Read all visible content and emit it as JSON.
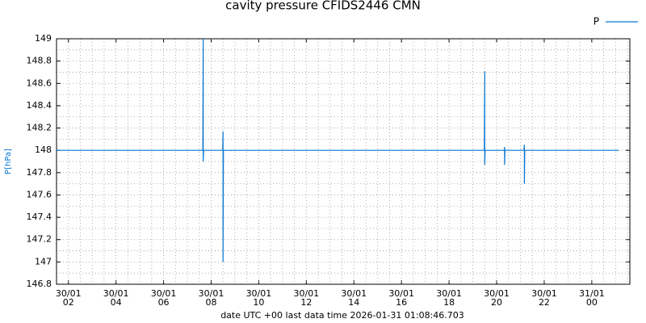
{
  "chart_data": {
    "type": "line",
    "title": "cavity pressure CFIDS2446 CMN",
    "y_label": "P[hPa]",
    "x_label": "date UTC +00 last data time 2026-01-31 01:08:46.703",
    "xlim": [
      "2026-01-30 01:30",
      "2026-01-31 01:36"
    ],
    "xticks": [
      {
        "value": "2026-01-30 02:00",
        "label": [
          "30/01",
          "02"
        ]
      },
      {
        "value": "2026-01-30 04:00",
        "label": [
          "30/01",
          "04"
        ]
      },
      {
        "value": "2026-01-30 06:00",
        "label": [
          "30/01",
          "06"
        ]
      },
      {
        "value": "2026-01-30 08:00",
        "label": [
          "30/01",
          "08"
        ]
      },
      {
        "value": "2026-01-30 10:00",
        "label": [
          "30/01",
          "10"
        ]
      },
      {
        "value": "2026-01-30 12:00",
        "label": [
          "30/01",
          "12"
        ]
      },
      {
        "value": "2026-01-30 14:00",
        "label": [
          "30/01",
          "14"
        ]
      },
      {
        "value": "2026-01-30 16:00",
        "label": [
          "30/01",
          "16"
        ]
      },
      {
        "value": "2026-01-30 18:00",
        "label": [
          "30/01",
          "18"
        ]
      },
      {
        "value": "2026-01-30 20:00",
        "label": [
          "30/01",
          "20"
        ]
      },
      {
        "value": "2026-01-30 22:00",
        "label": [
          "30/01",
          "22"
        ]
      },
      {
        "value": "2026-01-31 00:00",
        "label": [
          "31/01",
          "00"
        ]
      }
    ],
    "ylim": [
      146.8,
      149
    ],
    "yticks": [
      146.8,
      147,
      147.2,
      147.4,
      147.6,
      147.8,
      148,
      148.2,
      148.4,
      148.6,
      148.8,
      149
    ],
    "grid": true,
    "legend": "top-right",
    "series": [
      {
        "name": "P",
        "color": "#0a78d2",
        "x": [
          "2026-01-30 01:30",
          "2026-01-30 07:39",
          "2026-01-30 07:40",
          "2026-01-30 07:40",
          "2026-01-30 07:41",
          "2026-01-30 08:29",
          "2026-01-30 08:30",
          "2026-01-30 08:30",
          "2026-01-30 08:31",
          "2026-01-30 19:29",
          "2026-01-30 19:30",
          "2026-01-30 19:30",
          "2026-01-30 19:31",
          "2026-01-30 20:19",
          "2026-01-30 20:20",
          "2026-01-30 20:20",
          "2026-01-30 20:21",
          "2026-01-30 21:09",
          "2026-01-30 21:10",
          "2026-01-30 21:10",
          "2026-01-30 21:11",
          "2026-01-31 01:08"
        ],
        "values": [
          148,
          148,
          149,
          147.9,
          148,
          148,
          148.17,
          147,
          148,
          148,
          148.71,
          147.87,
          148,
          148,
          148.03,
          147.87,
          148,
          148,
          148.05,
          147.7,
          148,
          148
        ]
      }
    ]
  }
}
